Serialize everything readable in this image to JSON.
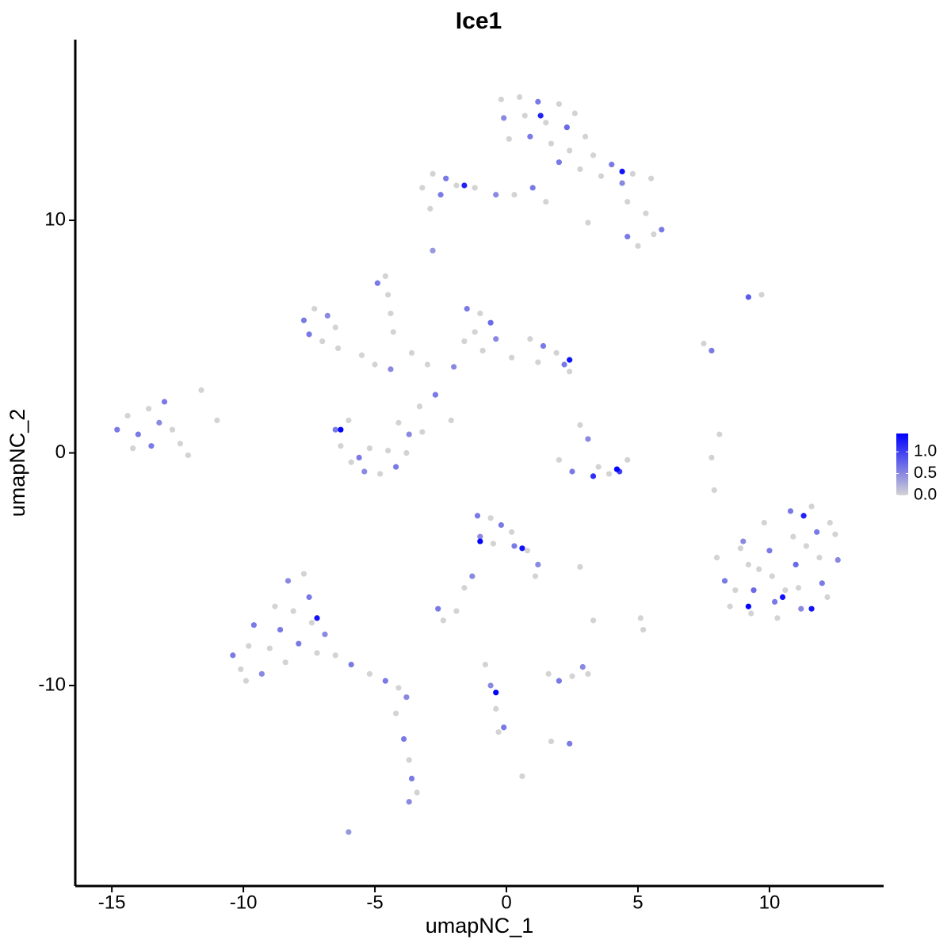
{
  "chart_data": {
    "type": "scatter",
    "title": "Ice1",
    "x_label": "umapNC_1",
    "y_label": "umapNC_2",
    "xlim": [
      -16.39,
      14.34
    ],
    "ylim": [
      -18.62,
      17.77
    ],
    "xticks": [
      -15,
      -10,
      -5,
      0,
      5,
      10
    ],
    "yticks": [
      -10,
      0,
      10
    ],
    "colorlim": [
      0,
      1.42
    ],
    "color_low": "#d3d3d3",
    "color_high": "#0000ff",
    "colorbar_ticks": [
      {
        "value": 0,
        "label": "0.0"
      },
      {
        "value": 0.5,
        "label": "0.5"
      },
      {
        "value": 1,
        "label": "1.0"
      }
    ],
    "x": [
      -0.2,
      0.5,
      1.2,
      2.0,
      2.6,
      -0.1,
      0.7,
      1.5,
      2.3,
      3.0,
      0.1,
      0.9,
      1.7,
      2.4,
      3.3,
      4.0,
      4.8,
      5.5,
      3.6,
      4.4,
      2.8,
      2.0,
      4.6,
      5.3,
      5.9,
      5.6,
      4.6,
      5.0,
      3.1,
      -3.2,
      -2.8,
      -2.3,
      -1.9,
      -2.5,
      -2.9,
      -1.2,
      -0.4,
      0.3,
      1.0,
      1.5,
      -2.8,
      -7.7,
      -7.3,
      -6.8,
      -6.5,
      -7.5,
      -7.0,
      -6.4,
      -5.5,
      -5.0,
      -4.9,
      -4.6,
      -4.5,
      -4.4,
      -4.3,
      -1.5,
      -1.0,
      -0.6,
      -1.2,
      -1.6,
      -0.4,
      -0.9,
      0.9,
      1.4,
      1.9,
      2.2,
      1.2,
      2.4,
      -3.0,
      -2.0,
      -3.6,
      -4.4,
      0.2,
      -2.7,
      -3.3,
      -2.1,
      -6.5,
      -6.3,
      -5.9,
      -5.4,
      -4.8,
      -4.2,
      -3.8,
      -3.7,
      -4.5,
      -5.2,
      -5.6,
      -4.1,
      -6.0,
      -3.2,
      -14.8,
      -14.4,
      -14.0,
      -13.6,
      -13.2,
      -13.0,
      -12.7,
      -12.4,
      -13.5,
      -14.2,
      -12.1,
      -11.6,
      -11.0,
      2.8,
      3.1,
      2.0,
      2.5,
      3.3,
      3.9,
      4.3,
      4.6,
      3.5,
      8.0,
      8.3,
      8.5,
      9.0,
      9.2,
      9.4,
      9.3,
      9.8,
      10.0,
      10.1,
      10.2,
      10.3,
      10.8,
      10.9,
      11.0,
      11.1,
      11.2,
      11.6,
      11.8,
      11.9,
      12.0,
      12.2,
      12.5,
      12.6,
      8.9,
      9.6,
      10.6,
      11.4,
      12.3,
      8.7,
      7.9,
      7.8,
      8.1,
      9.2,
      9.7,
      7.5,
      7.8,
      -10.4,
      -10.1,
      -9.8,
      -9.6,
      -9.3,
      -9.0,
      -8.8,
      -8.6,
      -8.4,
      -8.3,
      -8.1,
      -7.9,
      -7.7,
      -7.5,
      -7.4,
      -7.2,
      -6.9,
      -9.9,
      -6.5,
      -5.9,
      -5.2,
      -4.6,
      -4.1,
      -3.8,
      -4.2,
      -3.9,
      -3.7,
      -3.6,
      -3.7,
      -3.4,
      -6.0,
      -1.1,
      -0.6,
      -0.2,
      0.2,
      -1.0,
      -0.5,
      0.3,
      0.8,
      1.2,
      1.1,
      -1.3,
      -1.6,
      2.8,
      -2.6,
      -2.4,
      -1.9,
      -0.8,
      -0.6,
      -0.4,
      -0.1,
      -0.3,
      1.6,
      2.0,
      2.5,
      2.9,
      3.1,
      1.7,
      2.4,
      0.6,
      5.1,
      5.2,
      3.3,
      1.3,
      4.4,
      -1.6,
      2.4,
      -6.3,
      4.2,
      0.6,
      -7.2,
      -0.4,
      9.2,
      10.5,
      11.3,
      11.6,
      -1.0
    ],
    "y": [
      15.2,
      15.3,
      15.1,
      15.0,
      14.6,
      14.4,
      14.5,
      14.2,
      14.0,
      13.6,
      13.5,
      13.6,
      13.3,
      13.0,
      12.8,
      12.4,
      12.0,
      11.8,
      11.9,
      11.6,
      12.2,
      12.5,
      10.8,
      10.3,
      9.6,
      9.4,
      9.3,
      8.9,
      9.9,
      11.4,
      12.0,
      11.8,
      11.5,
      11.1,
      10.5,
      11.4,
      11.1,
      11.1,
      11.4,
      10.8,
      8.7,
      5.7,
      6.2,
      5.9,
      5.4,
      5.1,
      4.8,
      4.5,
      4.2,
      3.8,
      7.3,
      7.6,
      6.8,
      6.0,
      5.2,
      6.2,
      6.0,
      5.6,
      5.2,
      4.8,
      4.9,
      4.4,
      4.9,
      4.6,
      4.3,
      3.8,
      3.9,
      3.5,
      3.8,
      3.7,
      4.3,
      3.6,
      4.1,
      2.5,
      2.0,
      1.4,
      1.0,
      0.3,
      -0.4,
      -0.8,
      -0.9,
      -0.6,
      0,
      0.8,
      0.1,
      0.2,
      -0.2,
      1.3,
      1.4,
      0.9,
      1.0,
      1.6,
      0.8,
      1.9,
      1.3,
      2.2,
      1.0,
      0.4,
      0.3,
      0.2,
      -0.1,
      2.7,
      1.4,
      1.2,
      0.6,
      -0.3,
      -0.8,
      -1.0,
      -0.9,
      -0.8,
      -0.3,
      -0.6,
      -4.5,
      -5.5,
      -6.6,
      -3.8,
      -4.8,
      -5.9,
      -6.9,
      -3.0,
      -4.2,
      -5.3,
      -6.4,
      -7.1,
      -2.5,
      -3.6,
      -4.8,
      -5.8,
      -6.7,
      -2.3,
      -3.4,
      -4.5,
      -5.6,
      -6.2,
      -3.5,
      -4.6,
      -4.1,
      -5.0,
      -5.9,
      -4.0,
      -3.0,
      -5.9,
      -1.6,
      -0.2,
      0.8,
      6.7,
      6.8,
      4.7,
      4.4,
      -8.7,
      -9.3,
      -8.3,
      -7.4,
      -9.5,
      -8.4,
      -6.6,
      -7.6,
      -9.0,
      -5.5,
      -6.8,
      -8.2,
      -5.2,
      -6.2,
      -7.3,
      -8.6,
      -7.8,
      -9.8,
      -8.7,
      -9.1,
      -9.5,
      -9.8,
      -10.1,
      -10.5,
      -11.2,
      -12.3,
      -13.2,
      -14.0,
      -15.0,
      -14.6,
      -16.3,
      -2.7,
      -2.8,
      -3.1,
      -3.4,
      -3.6,
      -3.9,
      -4.0,
      -4.2,
      -4.8,
      -5.3,
      -5.3,
      -5.8,
      -4.9,
      -6.7,
      -7.2,
      -6.8,
      -9.1,
      -10.0,
      -11.0,
      -11.8,
      -12.0,
      -9.5,
      -9.8,
      -9.6,
      -9.2,
      -9.5,
      -12.4,
      -12.5,
      -13.9,
      -7.1,
      -7.6,
      -7.2,
      14.5,
      12.1,
      11.5,
      4.0,
      1.0,
      -0.7,
      -4.1,
      -7.1,
      -10.3,
      -6.6,
      -6.2,
      -2.7,
      -6.7,
      -3.8
    ],
    "values": [
      0,
      0,
      0.6,
      0,
      0,
      0.5,
      0,
      0,
      0.7,
      0,
      0,
      0.6,
      0,
      0,
      0,
      0.6,
      0,
      0,
      0,
      0.5,
      0,
      0.6,
      0,
      0,
      0.6,
      0,
      0.6,
      0,
      0,
      0,
      0,
      0.6,
      0,
      0.6,
      0,
      0,
      0.5,
      0,
      0.6,
      0,
      0.4,
      0.6,
      0,
      0.5,
      0,
      0.6,
      0,
      0,
      0,
      0,
      0.6,
      0,
      0,
      0,
      0,
      0.6,
      0,
      0.7,
      0,
      0,
      0.5,
      0,
      0,
      0.6,
      0,
      0.6,
      0,
      0,
      0,
      0.5,
      0,
      0.5,
      0,
      0.6,
      0,
      0,
      0.6,
      0,
      0,
      0.5,
      0,
      0.6,
      0,
      0.5,
      0,
      0,
      0.6,
      0,
      0,
      0,
      0.6,
      0,
      0.6,
      0,
      0.5,
      0.6,
      0,
      0,
      0.6,
      0,
      0,
      0,
      0,
      0,
      0.5,
      0,
      0.6,
      1.1,
      0,
      1.0,
      0,
      0,
      0,
      0.6,
      0,
      0.5,
      0,
      0.7,
      0,
      0,
      0.6,
      0,
      0.6,
      0,
      0.6,
      0,
      0.7,
      0,
      0.5,
      0,
      0.6,
      0,
      0.6,
      0,
      0,
      0.5,
      0,
      0,
      0,
      0,
      0,
      0,
      0,
      0,
      0,
      0.8,
      0,
      0,
      0.6,
      0.6,
      0,
      0,
      0.6,
      0.5,
      0,
      0,
      0.6,
      0,
      0.5,
      0,
      0.6,
      0,
      0.6,
      0,
      0,
      0.5,
      0,
      0,
      0.6,
      0,
      0.6,
      0,
      0.5,
      0,
      0.6,
      0,
      0.6,
      0.5,
      0,
      0.4,
      0.6,
      0,
      0.6,
      0,
      0.5,
      0,
      0.6,
      0,
      0.5,
      0,
      0.5,
      0,
      0,
      0.6,
      0,
      0,
      0,
      0.5,
      0,
      0.6,
      0,
      0,
      0.6,
      0,
      0.5,
      0,
      0,
      0.6,
      0,
      0,
      0,
      0,
      1.2,
      1.3,
      1.2,
      1.3,
      1.4,
      1.4,
      1.3,
      1.3,
      1.4,
      1.4,
      1.3,
      1.2,
      1.3,
      1.4
    ]
  }
}
